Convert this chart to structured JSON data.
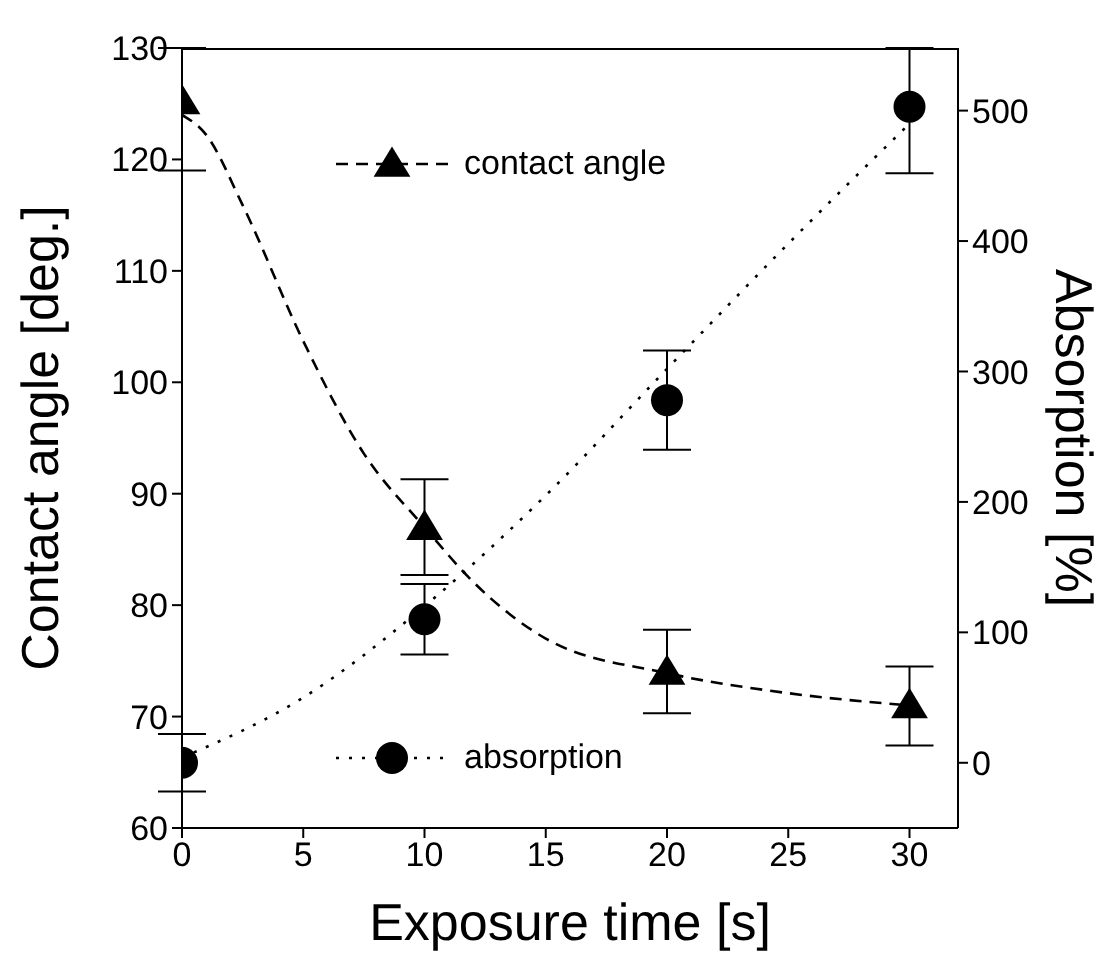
{
  "chart_data": {
    "type": "scatter",
    "xlabel": "Exposure time [s]",
    "ylabel": "Contact angle [deg.]",
    "y2label": "Absorption [%]",
    "xlim": [
      0,
      32
    ],
    "xticks": [
      0,
      5,
      10,
      15,
      20,
      25,
      30
    ],
    "ylim": [
      60,
      130
    ],
    "yticks": [
      60,
      70,
      80,
      90,
      100,
      110,
      120,
      130
    ],
    "y2lim": [
      -50,
      548
    ],
    "y2ticks": [
      0,
      100,
      200,
      300,
      400,
      500
    ],
    "legend": "left",
    "grid": false,
    "series": [
      {
        "name": "contact angle",
        "type": "scatter",
        "color": "#000000",
        "marker": "triangle",
        "x": [
          0,
          10,
          20,
          30
        ],
        "values": [
          125.2,
          87,
          74,
          71
        ],
        "errors": [
          [
            119,
            130
          ],
          [
            82.7,
            91.3
          ],
          [
            70.3,
            77.8
          ],
          [
            67.4,
            74.5
          ]
        ]
      },
      {
        "name": "absorption",
        "type": "scatter",
        "axis": "y2",
        "color": "#000000",
        "marker": "circle",
        "x": [
          0,
          10,
          20,
          30
        ],
        "values": [
          0,
          110,
          278,
          503
        ],
        "errors": [
          [
            -22,
            22
          ],
          [
            83,
            137
          ],
          [
            240,
            316
          ],
          [
            452,
            548
          ]
        ]
      },
      {
        "type": "line",
        "color": "#000000",
        "marker": "none",
        "line_style": "dashed",
        "x": [
          0,
          1,
          2.5,
          5,
          7.5,
          10,
          12,
          15,
          20,
          25,
          30
        ],
        "values": [
          124,
          122.2,
          115.9,
          103.7,
          93.6,
          87,
          82.1,
          77,
          73.9,
          72.1,
          71
        ]
      },
      {
        "type": "line",
        "axis": "y2",
        "color": "#000000",
        "marker": "none",
        "line_style": "dotted",
        "x": [
          0,
          5,
          10,
          15,
          20,
          25,
          30
        ],
        "values": [
          4,
          50,
          120,
          205,
          302,
          398,
          490
        ]
      }
    ]
  }
}
